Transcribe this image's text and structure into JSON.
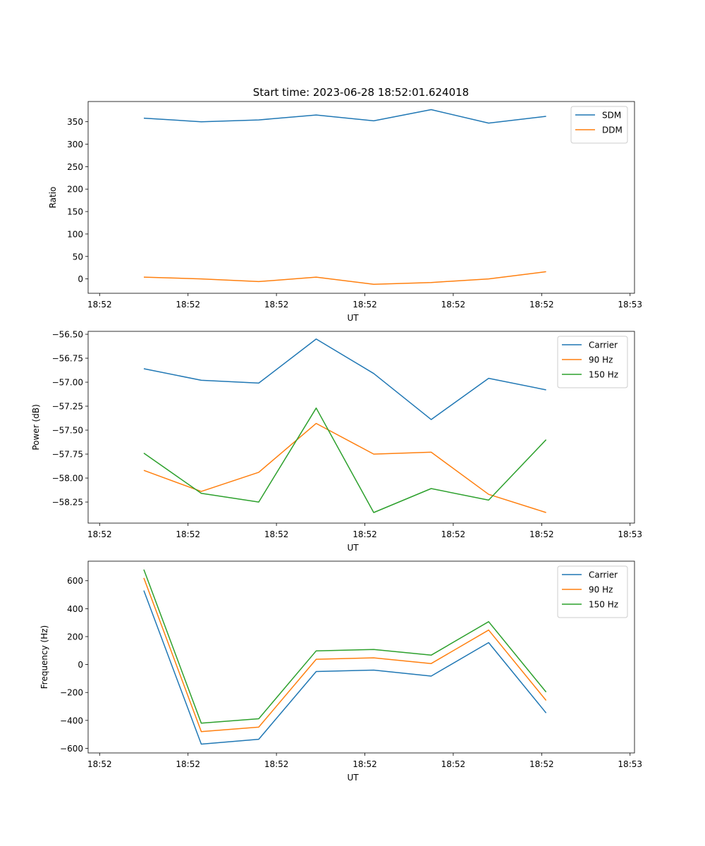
{
  "figure_title": "Start time: 2023-06-28 18:52:01.624018",
  "chart_data": [
    {
      "type": "line",
      "xlabel": "UT",
      "ylabel": "Ratio",
      "x_tick_labels": [
        "18:52",
        "18:52",
        "18:52",
        "18:52",
        "18:52",
        "18:52",
        "18:53"
      ],
      "xlim": [
        -0.13,
        6.05
      ],
      "ylim": [
        -32,
        395
      ],
      "y_ticks": [
        0,
        50,
        100,
        150,
        200,
        250,
        300,
        350
      ],
      "x": [
        0.5,
        1.15,
        1.8,
        2.45,
        3.1,
        3.75,
        4.4,
        5.05
      ],
      "legend_position": "top-right",
      "series": [
        {
          "name": "SDM",
          "color": "#1f77b4",
          "values": [
            358,
            350,
            354,
            365,
            352,
            377,
            347,
            362
          ]
        },
        {
          "name": "DDM",
          "color": "#ff7f0e",
          "values": [
            4,
            0,
            -6,
            4,
            -12,
            -8,
            0,
            16
          ]
        }
      ]
    },
    {
      "type": "line",
      "xlabel": "UT",
      "ylabel": "Power (dB)",
      "x_tick_labels": [
        "18:52",
        "18:52",
        "18:52",
        "18:52",
        "18:52",
        "18:52",
        "18:53"
      ],
      "xlim": [
        -0.13,
        6.05
      ],
      "ylim": [
        -58.47,
        -56.47
      ],
      "y_ticks": [
        -58.25,
        -58.0,
        -57.75,
        -57.5,
        -57.25,
        -57.0,
        -56.75,
        -56.5
      ],
      "y_tick_labels": [
        "−58.25",
        "−58.00",
        "−57.75",
        "−57.50",
        "−57.25",
        "−57.00",
        "−56.75",
        "−56.50"
      ],
      "x": [
        0.5,
        1.15,
        1.8,
        2.45,
        3.1,
        3.75,
        4.4,
        5.05
      ],
      "legend_position": "top-right",
      "series": [
        {
          "name": "Carrier",
          "color": "#1f77b4",
          "values": [
            -56.86,
            -56.98,
            -57.01,
            -56.55,
            -56.91,
            -57.39,
            -56.96,
            -57.08
          ]
        },
        {
          "name": "90 Hz",
          "color": "#ff7f0e",
          "values": [
            -57.92,
            -58.14,
            -57.94,
            -57.43,
            -57.75,
            -57.73,
            -58.17,
            -58.36
          ]
        },
        {
          "name": "150 Hz",
          "color": "#2ca02c",
          "values": [
            -57.74,
            -58.16,
            -58.25,
            -57.27,
            -58.36,
            -58.11,
            -58.23,
            -57.6
          ]
        }
      ]
    },
    {
      "type": "line",
      "xlabel": "UT",
      "ylabel": "Frequency (Hz)",
      "x_tick_labels": [
        "18:52",
        "18:52",
        "18:52",
        "18:52",
        "18:52",
        "18:52",
        "18:53"
      ],
      "xlim": [
        -0.13,
        6.05
      ],
      "ylim": [
        -633,
        740
      ],
      "y_ticks": [
        -600,
        -400,
        -200,
        0,
        200,
        400,
        600
      ],
      "y_tick_labels": [
        "−600",
        "−400",
        "−200",
        "0",
        "200",
        "400",
        "600"
      ],
      "x": [
        0.5,
        1.15,
        1.8,
        2.45,
        3.1,
        3.75,
        4.4,
        5.05
      ],
      "legend_position": "top-right",
      "series": [
        {
          "name": "Carrier",
          "color": "#1f77b4",
          "values": [
            530,
            -570,
            -535,
            -50,
            -40,
            -83,
            157,
            -347
          ]
        },
        {
          "name": "90 Hz",
          "color": "#ff7f0e",
          "values": [
            620,
            -480,
            -448,
            38,
            48,
            7,
            247,
            -257
          ]
        },
        {
          "name": "150 Hz",
          "color": "#2ca02c",
          "values": [
            680,
            -420,
            -388,
            98,
            108,
            67,
            307,
            -197
          ]
        }
      ]
    }
  ]
}
